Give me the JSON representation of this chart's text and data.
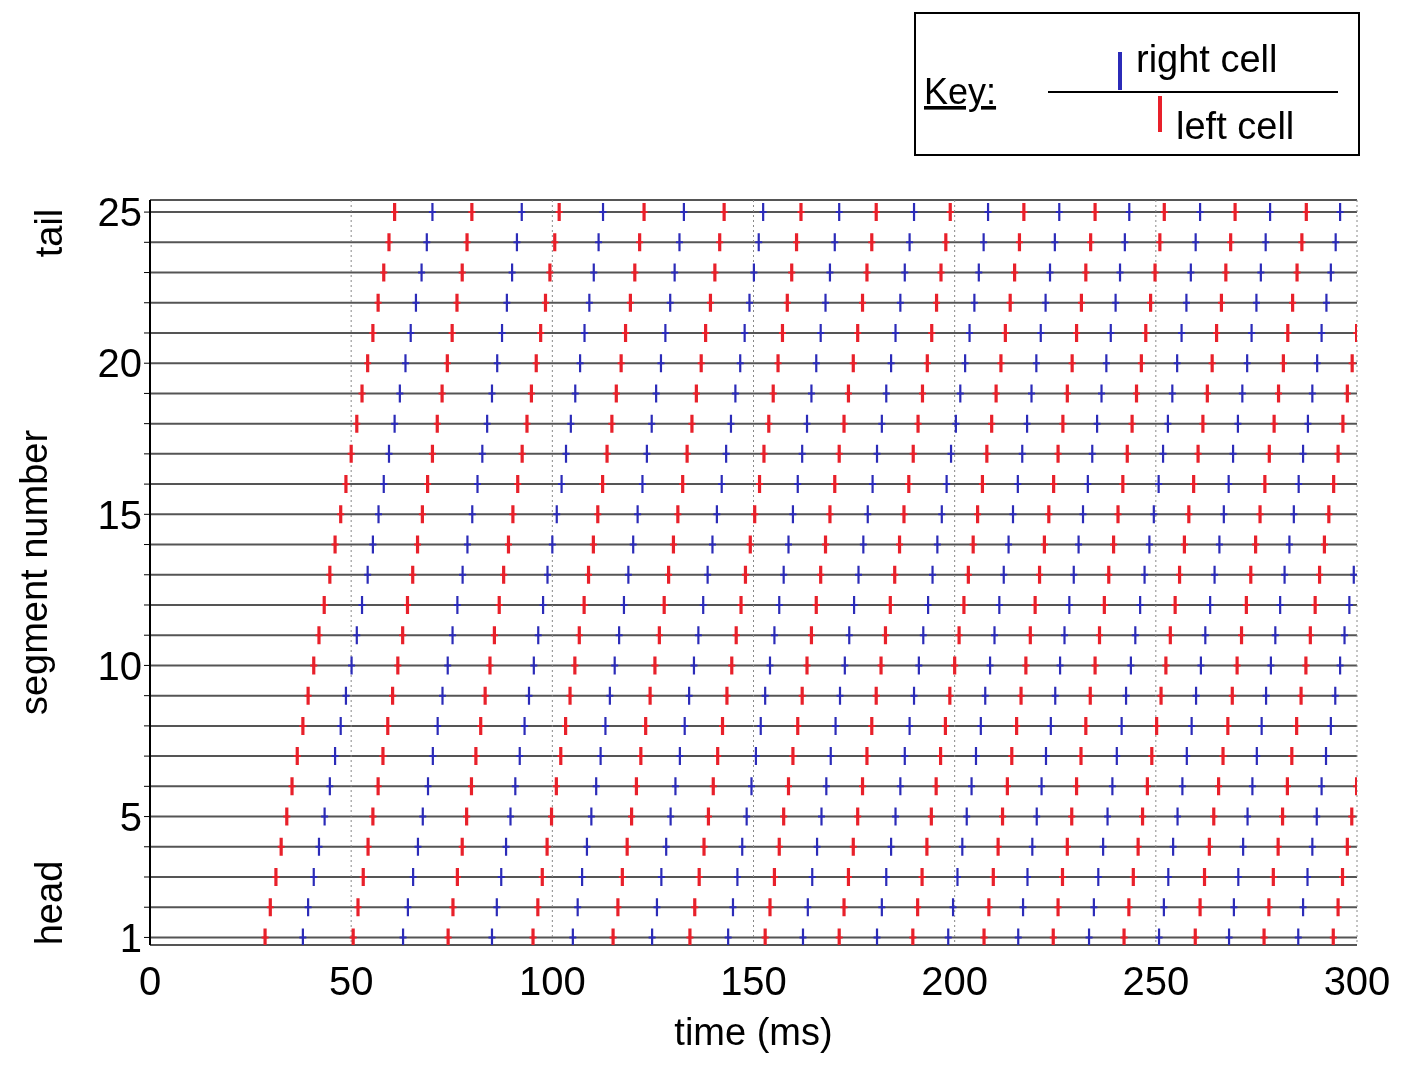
{
  "chart_data": {
    "type": "scatter",
    "xlabel": "time (ms)",
    "ylabel": "segment number",
    "legend_title": "Key:",
    "annotations": [
      "head",
      "tail"
    ],
    "xlim": [
      0,
      300
    ],
    "xticks": [
      0,
      50,
      100,
      150,
      200,
      250,
      300
    ],
    "ylim": [
      0.75,
      25.4
    ],
    "yticks": [
      1,
      {
        "value": 2,
        "label": null
      },
      {
        "value": 3,
        "label": null
      },
      {
        "value": 4,
        "label": null
      },
      5,
      {
        "value": 6,
        "label": null
      },
      {
        "value": 7,
        "label": null
      },
      {
        "value": 8,
        "label": null
      },
      {
        "value": 9,
        "label": null
      },
      10,
      {
        "value": 11,
        "label": null
      },
      {
        "value": 12,
        "label": null
      },
      {
        "value": 13,
        "label": null
      },
      {
        "value": 14,
        "label": null
      },
      15,
      {
        "value": 16,
        "label": null
      },
      {
        "value": 17,
        "label": null
      },
      {
        "value": 18,
        "label": null
      },
      {
        "value": 19,
        "label": null
      },
      20,
      {
        "value": 21,
        "label": null
      },
      {
        "value": 22,
        "label": null
      },
      {
        "value": 23,
        "label": null
      },
      {
        "value": 24,
        "label": null
      },
      25
    ],
    "grid": true,
    "legend": "top right",
    "marker": "cross",
    "series": [
      {
        "name": "right cell",
        "color": "#2b2bb8",
        "x": [
          38.0,
          39.3,
          40.7,
          42.0,
          43.4,
          44.7,
          46.0,
          47.4,
          48.7,
          50.1,
          51.4,
          52.7,
          54.1,
          55.4,
          56.8,
          58.1,
          59.4,
          60.8,
          62.1,
          63.5,
          64.8,
          66.1,
          67.5,
          68.8,
          70.2,
          62.9,
          64.1,
          65.4,
          66.6,
          67.8,
          69.1,
          70.3,
          71.5,
          72.7,
          74.0,
          75.2,
          76.4,
          77.7,
          78.9,
          80.1,
          81.4,
          82.6,
          83.8,
          85.0,
          86.3,
          87.5,
          88.7,
          90.0,
          91.2,
          92.4,
          85.0,
          86.2,
          87.3,
          88.5,
          89.6,
          90.8,
          91.9,
          93.1,
          94.2,
          95.4,
          96.5,
          97.7,
          98.8,
          100.0,
          101.1,
          102.3,
          103.4,
          104.6,
          105.7,
          106.9,
          108.0,
          109.2,
          110.3,
          111.5,
          112.6,
          105.1,
          106.3,
          107.4,
          108.6,
          109.7,
          110.9,
          112.0,
          113.2,
          114.3,
          115.5,
          116.6,
          117.8,
          118.9,
          120.1,
          121.2,
          122.4,
          123.5,
          124.7,
          125.8,
          127.0,
          128.1,
          129.3,
          130.4,
          131.6,
          132.7,
          124.8,
          126.0,
          127.1,
          128.3,
          129.4,
          130.6,
          131.7,
          132.9,
          134.0,
          135.2,
          136.3,
          137.5,
          138.6,
          139.8,
          140.9,
          142.1,
          143.2,
          144.4,
          145.5,
          146.7,
          147.8,
          149.0,
          150.1,
          151.3,
          152.4,
          143.7,
          144.9,
          146.0,
          147.2,
          148.3,
          149.5,
          150.6,
          151.8,
          152.9,
          154.1,
          155.2,
          156.4,
          157.5,
          158.7,
          159.8,
          161.0,
          162.1,
          163.3,
          164.4,
          165.6,
          166.7,
          167.9,
          169.0,
          170.2,
          171.3,
          162.3,
          163.5,
          164.6,
          165.8,
          166.9,
          168.1,
          169.2,
          170.4,
          171.5,
          172.7,
          173.8,
          175.0,
          176.1,
          177.3,
          178.4,
          179.6,
          180.7,
          181.9,
          183.0,
          184.2,
          185.3,
          186.5,
          187.6,
          188.8,
          189.9,
          180.7,
          181.9,
          183.0,
          184.2,
          185.3,
          186.5,
          187.6,
          188.8,
          189.9,
          191.1,
          192.2,
          193.4,
          194.5,
          195.7,
          196.8,
          198.0,
          199.1,
          200.3,
          201.4,
          202.6,
          203.7,
          204.9,
          206.0,
          207.2,
          208.3,
          198.4,
          199.6,
          200.7,
          201.9,
          203.0,
          204.2,
          205.3,
          206.5,
          207.6,
          208.8,
          209.9,
          211.1,
          212.2,
          213.4,
          214.5,
          215.7,
          216.8,
          218.0,
          219.1,
          220.3,
          221.4,
          222.6,
          223.7,
          224.9,
          226.0,
          215.8,
          217.0,
          218.1,
          219.3,
          220.4,
          221.6,
          222.7,
          223.9,
          225.0,
          226.2,
          227.3,
          228.5,
          229.6,
          230.8,
          231.9,
          233.1,
          234.2,
          235.4,
          236.5,
          237.7,
          238.8,
          240.0,
          241.1,
          242.3,
          243.4,
          233.4,
          234.6,
          235.7,
          236.9,
          238.0,
          239.2,
          240.3,
          241.5,
          242.6,
          243.8,
          244.9,
          246.1,
          247.2,
          248.4,
          249.5,
          250.7,
          251.8,
          253.0,
          254.1,
          255.3,
          256.4,
          257.6,
          258.7,
          259.9,
          261.0,
          250.8,
          252.0,
          253.1,
          254.3,
          255.4,
          256.6,
          257.7,
          258.9,
          260.0,
          261.2,
          262.3,
          263.5,
          264.6,
          265.8,
          266.9,
          268.1,
          269.2,
          270.4,
          271.5,
          272.7,
          273.8,
          275.0,
          276.1,
          277.3,
          278.4,
          268.2,
          269.4,
          270.5,
          271.7,
          272.8,
          274.0,
          275.1,
          276.3,
          277.4,
          278.6,
          279.7,
          280.9,
          282.0,
          283.2,
          284.3,
          285.5,
          286.6,
          287.8,
          288.9,
          290.1,
          291.2,
          292.4,
          293.5,
          294.7,
          295.8,
          285.4,
          286.6,
          287.7,
          288.9,
          290.0,
          291.2,
          292.3,
          293.5,
          294.6,
          295.8,
          296.9,
          298.1,
          299.2
        ],
        "values": [
          1,
          2,
          3,
          4,
          5,
          6,
          7,
          8,
          9,
          10,
          11,
          12,
          13,
          14,
          15,
          16,
          17,
          18,
          19,
          20,
          21,
          22,
          23,
          24,
          25,
          1,
          2,
          3,
          4,
          5,
          6,
          7,
          8,
          9,
          10,
          11,
          12,
          13,
          14,
          15,
          16,
          17,
          18,
          19,
          20,
          21,
          22,
          23,
          24,
          25,
          1,
          2,
          3,
          4,
          5,
          6,
          7,
          8,
          9,
          10,
          11,
          12,
          13,
          14,
          15,
          16,
          17,
          18,
          19,
          20,
          21,
          22,
          23,
          24,
          25,
          1,
          2,
          3,
          4,
          5,
          6,
          7,
          8,
          9,
          10,
          11,
          12,
          13,
          14,
          15,
          16,
          17,
          18,
          19,
          20,
          21,
          22,
          23,
          24,
          25,
          1,
          2,
          3,
          4,
          5,
          6,
          7,
          8,
          9,
          10,
          11,
          12,
          13,
          14,
          15,
          16,
          17,
          18,
          19,
          20,
          21,
          22,
          23,
          24,
          25,
          1,
          2,
          3,
          4,
          5,
          6,
          7,
          8,
          9,
          10,
          11,
          12,
          13,
          14,
          15,
          16,
          17,
          18,
          19,
          20,
          21,
          22,
          23,
          24,
          25,
          1,
          2,
          3,
          4,
          5,
          6,
          7,
          8,
          9,
          10,
          11,
          12,
          13,
          14,
          15,
          16,
          17,
          18,
          19,
          20,
          21,
          22,
          23,
          24,
          25,
          1,
          2,
          3,
          4,
          5,
          6,
          7,
          8,
          9,
          10,
          11,
          12,
          13,
          14,
          15,
          16,
          17,
          18,
          19,
          20,
          21,
          22,
          23,
          24,
          25,
          1,
          2,
          3,
          4,
          5,
          6,
          7,
          8,
          9,
          10,
          11,
          12,
          13,
          14,
          15,
          16,
          17,
          18,
          19,
          20,
          21,
          22,
          23,
          24,
          25,
          1,
          2,
          3,
          4,
          5,
          6,
          7,
          8,
          9,
          10,
          11,
          12,
          13,
          14,
          15,
          16,
          17,
          18,
          19,
          20,
          21,
          22,
          23,
          24,
          25,
          1,
          2,
          3,
          4,
          5,
          6,
          7,
          8,
          9,
          10,
          11,
          12,
          13,
          14,
          15,
          16,
          17,
          18,
          19,
          20,
          21,
          22,
          23,
          24,
          25,
          1,
          2,
          3,
          4,
          5,
          6,
          7,
          8,
          9,
          10,
          11,
          12,
          13,
          14,
          15,
          16,
          17,
          18,
          19,
          20,
          21,
          22,
          23,
          24,
          25,
          1,
          2,
          3,
          4,
          5,
          6,
          7,
          8,
          9,
          10,
          11,
          12,
          13,
          14,
          15,
          16,
          17,
          18,
          19,
          20,
          21,
          22,
          23,
          24,
          25,
          1,
          2,
          3,
          4,
          5,
          6,
          7,
          8,
          9,
          10,
          11,
          12,
          13
        ]
      },
      {
        "name": "left cell",
        "color": "#e8202a",
        "x": [
          28.6,
          29.9,
          31.3,
          32.6,
          34.0,
          35.3,
          36.6,
          38.0,
          39.3,
          40.7,
          42.0,
          43.3,
          44.7,
          46.0,
          47.4,
          48.7,
          50.0,
          51.4,
          52.7,
          54.1,
          55.4,
          56.7,
          58.1,
          59.4,
          60.8,
          50.5,
          51.7,
          53.0,
          54.2,
          55.4,
          56.7,
          57.9,
          59.1,
          60.3,
          61.6,
          62.8,
          64.0,
          65.3,
          66.5,
          67.7,
          69.0,
          70.2,
          71.4,
          72.6,
          73.9,
          75.1,
          76.3,
          77.6,
          78.8,
          80.0,
          74.1,
          75.3,
          76.4,
          77.6,
          78.7,
          79.9,
          81.0,
          82.2,
          83.3,
          84.5,
          85.6,
          86.8,
          87.9,
          89.1,
          90.2,
          91.4,
          92.5,
          93.7,
          94.8,
          96.0,
          97.1,
          98.3,
          99.4,
          100.6,
          101.7,
          95.2,
          96.4,
          97.5,
          98.7,
          99.8,
          101.0,
          102.1,
          103.3,
          104.4,
          105.6,
          106.7,
          107.9,
          109.0,
          110.2,
          111.3,
          112.5,
          113.6,
          114.8,
          115.9,
          117.1,
          118.2,
          119.4,
          120.5,
          121.7,
          122.8,
          115.1,
          116.3,
          117.4,
          118.6,
          119.7,
          120.9,
          122.0,
          123.2,
          124.3,
          125.5,
          126.6,
          127.8,
          128.9,
          130.1,
          131.2,
          132.4,
          133.5,
          134.7,
          135.8,
          137.0,
          138.1,
          139.3,
          140.4,
          141.6,
          142.7,
          134.2,
          135.4,
          136.5,
          137.7,
          138.8,
          140.0,
          141.1,
          142.3,
          143.4,
          144.6,
          145.7,
          146.9,
          148.0,
          149.2,
          150.3,
          151.5,
          152.6,
          153.8,
          154.9,
          156.1,
          157.2,
          158.4,
          159.5,
          160.7,
          161.8,
          152.9,
          154.1,
          155.2,
          156.4,
          157.5,
          158.7,
          159.8,
          161.0,
          162.1,
          163.3,
          164.4,
          165.6,
          166.7,
          167.9,
          169.0,
          170.2,
          171.3,
          172.5,
          173.6,
          174.8,
          175.9,
          177.1,
          178.2,
          179.4,
          180.5,
          171.3,
          172.5,
          173.6,
          174.8,
          175.9,
          177.1,
          178.2,
          179.4,
          180.5,
          181.7,
          182.8,
          184.0,
          185.1,
          186.3,
          187.4,
          188.6,
          189.7,
          190.9,
          192.0,
          193.2,
          194.3,
          195.5,
          196.6,
          197.8,
          198.9,
          189.6,
          190.8,
          191.9,
          193.1,
          194.2,
          195.4,
          196.5,
          197.7,
          198.8,
          200.0,
          201.1,
          202.3,
          203.4,
          204.6,
          205.7,
          206.9,
          208.0,
          209.2,
          210.3,
          211.5,
          212.6,
          213.8,
          214.9,
          216.1,
          217.2,
          207.3,
          208.5,
          209.6,
          210.8,
          211.9,
          213.1,
          214.2,
          215.4,
          216.5,
          217.7,
          218.8,
          220.0,
          221.1,
          222.3,
          223.4,
          224.6,
          225.7,
          226.9,
          228.0,
          229.2,
          230.3,
          231.5,
          232.6,
          233.8,
          234.9,
          224.5,
          225.7,
          226.8,
          228.0,
          229.1,
          230.3,
          231.4,
          232.6,
          233.7,
          234.9,
          236.0,
          237.2,
          238.3,
          239.5,
          240.6,
          241.8,
          242.9,
          244.1,
          245.2,
          246.4,
          247.5,
          248.7,
          249.8,
          251.0,
          252.1,
          242.1,
          243.3,
          244.4,
          245.6,
          246.7,
          247.9,
          249.0,
          250.2,
          251.3,
          252.5,
          253.6,
          254.8,
          255.9,
          257.1,
          258.2,
          259.4,
          260.5,
          261.7,
          262.8,
          264.0,
          265.1,
          266.3,
          267.4,
          268.6,
          269.7,
          259.8,
          261.0,
          262.1,
          263.3,
          264.4,
          265.6,
          266.7,
          267.9,
          269.0,
          270.2,
          271.3,
          272.5,
          273.6,
          274.8,
          275.9,
          277.1,
          278.2,
          279.4,
          280.5,
          281.7,
          282.8,
          284.0,
          285.1,
          286.3,
          287.4,
          276.9,
          278.1,
          279.2,
          280.4,
          281.5,
          282.7,
          283.8,
          285.0,
          286.1,
          287.3,
          288.4,
          289.6,
          290.7,
          291.9,
          293.0,
          294.2,
          295.3,
          296.5,
          297.6,
          298.8,
          299.9,
          294.1,
          295.3,
          296.4,
          297.6,
          298.7,
          299.9
        ],
        "values": [
          1,
          2,
          3,
          4,
          5,
          6,
          7,
          8,
          9,
          10,
          11,
          12,
          13,
          14,
          15,
          16,
          17,
          18,
          19,
          20,
          21,
          22,
          23,
          24,
          25,
          1,
          2,
          3,
          4,
          5,
          6,
          7,
          8,
          9,
          10,
          11,
          12,
          13,
          14,
          15,
          16,
          17,
          18,
          19,
          20,
          21,
          22,
          23,
          24,
          25,
          1,
          2,
          3,
          4,
          5,
          6,
          7,
          8,
          9,
          10,
          11,
          12,
          13,
          14,
          15,
          16,
          17,
          18,
          19,
          20,
          21,
          22,
          23,
          24,
          25,
          1,
          2,
          3,
          4,
          5,
          6,
          7,
          8,
          9,
          10,
          11,
          12,
          13,
          14,
          15,
          16,
          17,
          18,
          19,
          20,
          21,
          22,
          23,
          24,
          25,
          1,
          2,
          3,
          4,
          5,
          6,
          7,
          8,
          9,
          10,
          11,
          12,
          13,
          14,
          15,
          16,
          17,
          18,
          19,
          20,
          21,
          22,
          23,
          24,
          25,
          1,
          2,
          3,
          4,
          5,
          6,
          7,
          8,
          9,
          10,
          11,
          12,
          13,
          14,
          15,
          16,
          17,
          18,
          19,
          20,
          21,
          22,
          23,
          24,
          25,
          1,
          2,
          3,
          4,
          5,
          6,
          7,
          8,
          9,
          10,
          11,
          12,
          13,
          14,
          15,
          16,
          17,
          18,
          19,
          20,
          21,
          22,
          23,
          24,
          25,
          1,
          2,
          3,
          4,
          5,
          6,
          7,
          8,
          9,
          10,
          11,
          12,
          13,
          14,
          15,
          16,
          17,
          18,
          19,
          20,
          21,
          22,
          23,
          24,
          25,
          1,
          2,
          3,
          4,
          5,
          6,
          7,
          8,
          9,
          10,
          11,
          12,
          13,
          14,
          15,
          16,
          17,
          18,
          19,
          20,
          21,
          22,
          23,
          24,
          25,
          1,
          2,
          3,
          4,
          5,
          6,
          7,
          8,
          9,
          10,
          11,
          12,
          13,
          14,
          15,
          16,
          17,
          18,
          19,
          20,
          21,
          22,
          23,
          24,
          25,
          1,
          2,
          3,
          4,
          5,
          6,
          7,
          8,
          9,
          10,
          11,
          12,
          13,
          14,
          15,
          16,
          17,
          18,
          19,
          20,
          21,
          22,
          23,
          24,
          25,
          1,
          2,
          3,
          4,
          5,
          6,
          7,
          8,
          9,
          10,
          11,
          12,
          13,
          14,
          15,
          16,
          17,
          18,
          19,
          20,
          21,
          22,
          23,
          24,
          25,
          1,
          2,
          3,
          4,
          5,
          6,
          7,
          8,
          9,
          10,
          11,
          12,
          13,
          14,
          15,
          16,
          17,
          18,
          19,
          20,
          21,
          22,
          23,
          24,
          25,
          1,
          2,
          3,
          4,
          5,
          6,
          7,
          8,
          9,
          10,
          11,
          12,
          13,
          14,
          15,
          16,
          17,
          18,
          19,
          20,
          21,
          1,
          2,
          3,
          4,
          5,
          6
        ]
      }
    ]
  }
}
